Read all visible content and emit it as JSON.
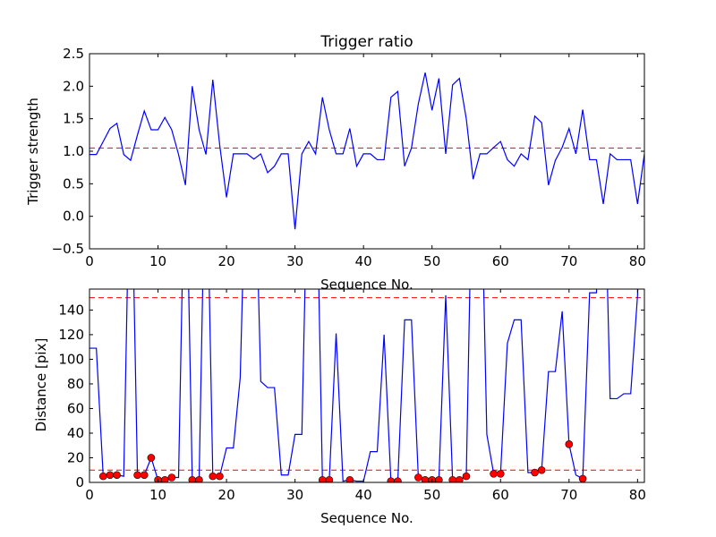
{
  "chart_data": [
    {
      "type": "line",
      "title": "Trigger ratio",
      "xlabel": "Sequence No.",
      "ylabel": "Trigger strength",
      "xlim": [
        0,
        81
      ],
      "ylim": [
        -0.5,
        2.5
      ],
      "xticks": [
        0,
        10,
        20,
        30,
        40,
        50,
        60,
        70,
        80
      ],
      "yticks": [
        -0.5,
        0.0,
        0.5,
        1.0,
        1.5,
        2.0,
        2.5
      ],
      "ytick_labels": [
        "−0.5",
        "0.0",
        "0.5",
        "1.0",
        "1.5",
        "2.0",
        "2.5"
      ],
      "threshold": 1.05,
      "series": [
        {
          "color": "#0000ff",
          "x": [
            0,
            1,
            2,
            3,
            4,
            5,
            6,
            7,
            8,
            9,
            10,
            11,
            12,
            13,
            14,
            15,
            16,
            17,
            18,
            19,
            20,
            21,
            22,
            23,
            24,
            25,
            26,
            27,
            28,
            29,
            30,
            31,
            32,
            33,
            34,
            35,
            36,
            37,
            38,
            39,
            40,
            41,
            42,
            43,
            44,
            45,
            46,
            47,
            48,
            49,
            50,
            51,
            52,
            53,
            54,
            55,
            56,
            57,
            58,
            59,
            60,
            61,
            62,
            63,
            64,
            65,
            66,
            67,
            68,
            69,
            70,
            71,
            72,
            73,
            74,
            75,
            76,
            77,
            78,
            79,
            80,
            81
          ],
          "y": [
            0.95,
            0.95,
            1.15,
            1.35,
            1.43,
            0.95,
            0.86,
            1.25,
            1.62,
            1.33,
            1.33,
            1.52,
            1.33,
            0.95,
            0.48,
            2.0,
            1.33,
            0.95,
            2.1,
            1.1,
            0.29,
            0.96,
            0.96,
            0.96,
            0.88,
            0.96,
            0.67,
            0.77,
            0.96,
            0.96,
            -0.2,
            0.96,
            1.15,
            0.96,
            1.83,
            1.33,
            0.96,
            0.96,
            1.35,
            0.77,
            0.96,
            0.96,
            0.87,
            0.87,
            1.83,
            1.92,
            0.77,
            1.05,
            1.73,
            2.21,
            1.63,
            2.12,
            0.96,
            2.02,
            2.12,
            1.5,
            0.57,
            0.96,
            0.96,
            1.06,
            1.15,
            0.87,
            0.77,
            0.96,
            0.87,
            1.54,
            1.44,
            0.48,
            0.86,
            1.06,
            1.35,
            0.96,
            1.64,
            0.87,
            0.87,
            0.19,
            0.96,
            0.87,
            0.87,
            0.87,
            0.19,
            0.96
          ]
        }
      ],
      "grid": false
    },
    {
      "type": "line",
      "xlabel": "Sequence No.",
      "ylabel": "Distance [pix]",
      "xlim": [
        0,
        81
      ],
      "ylim": [
        0,
        157
      ],
      "xticks": [
        0,
        10,
        20,
        30,
        40,
        50,
        60,
        70,
        80
      ],
      "yticks": [
        0,
        20,
        40,
        60,
        80,
        100,
        120,
        140
      ],
      "thresholds": [
        150,
        10
      ],
      "series": [
        {
          "color": "#0000ff",
          "x": [
            0,
            1,
            2,
            3,
            4,
            5,
            6,
            7,
            8,
            9,
            10,
            11,
            12,
            13,
            14,
            15,
            16,
            17,
            18,
            19,
            20,
            21,
            22,
            23,
            24,
            25,
            26,
            27,
            28,
            29,
            30,
            31,
            32,
            33,
            34,
            35,
            36,
            37,
            38,
            39,
            40,
            41,
            42,
            43,
            44,
            45,
            46,
            47,
            48,
            49,
            50,
            51,
            52,
            53,
            54,
            55,
            56,
            57,
            58,
            59,
            60,
            61,
            62,
            63,
            64,
            65,
            66,
            67,
            68,
            69,
            70,
            71,
            72,
            73,
            74,
            75,
            76,
            77,
            78,
            79,
            80,
            81
          ],
          "y": [
            109,
            109,
            5,
            6,
            6,
            5,
            300,
            6,
            6,
            20,
            2,
            2,
            4,
            4,
            300,
            2,
            2,
            300,
            5,
            5,
            28,
            28,
            85,
            300,
            300,
            82,
            77,
            77,
            6,
            6,
            39,
            39,
            300,
            300,
            2,
            2,
            121,
            1,
            2,
            1,
            1,
            25,
            25,
            120,
            1,
            1,
            132,
            132,
            4,
            2,
            2,
            2,
            152,
            2,
            2,
            5,
            300,
            300,
            39,
            7,
            7,
            113,
            132,
            132,
            8,
            8,
            10,
            90,
            90,
            139,
            31,
            6,
            3,
            154,
            154,
            300,
            68,
            68,
            72,
            72,
            152,
            300
          ]
        }
      ],
      "highlighted_points": {
        "color": "#ff0000",
        "x": [
          2,
          3,
          4,
          7,
          8,
          9,
          10,
          11,
          12,
          15,
          16,
          18,
          19,
          34,
          35,
          38,
          44,
          45,
          48,
          49,
          50,
          51,
          53,
          54,
          55,
          59,
          60,
          65,
          66,
          70,
          72
        ],
        "y": [
          5,
          6,
          6,
          6,
          6,
          20,
          2,
          2,
          4,
          2,
          2,
          5,
          5,
          2,
          2,
          2,
          1,
          1,
          4,
          2,
          2,
          2,
          2,
          2,
          5,
          7,
          7,
          8,
          10,
          31,
          3
        ]
      },
      "grid": false
    }
  ]
}
